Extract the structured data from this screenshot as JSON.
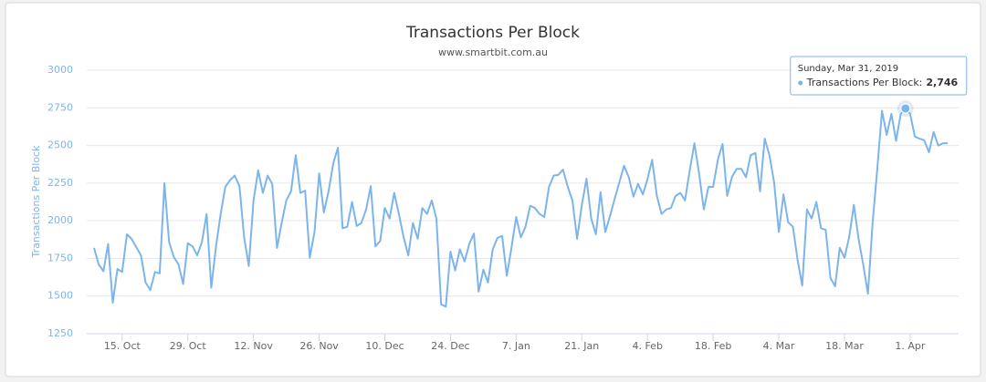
{
  "chart_data": {
    "type": "line",
    "title": "Transactions Per Block",
    "subtitle": "www.smartbit.com.au",
    "y_label": "Transactions Per Block",
    "color": "#7cb5ec",
    "grid": true,
    "ylim": [
      1250,
      3000
    ],
    "yticks": [
      1250,
      1500,
      1750,
      2000,
      2250,
      2500,
      2750,
      3000
    ],
    "categories": [
      null,
      null,
      null,
      null,
      null,
      null,
      "15. Oct",
      null,
      null,
      null,
      null,
      null,
      null,
      null,
      null,
      null,
      null,
      null,
      null,
      null,
      "29. Oct",
      null,
      null,
      null,
      null,
      null,
      null,
      null,
      null,
      null,
      null,
      null,
      null,
      null,
      "12. Nov",
      null,
      null,
      null,
      null,
      null,
      null,
      null,
      null,
      null,
      null,
      null,
      null,
      null,
      "26. Nov",
      null,
      null,
      null,
      null,
      null,
      null,
      null,
      null,
      null,
      null,
      null,
      null,
      null,
      "10. Dec",
      null,
      null,
      null,
      null,
      null,
      null,
      null,
      null,
      null,
      null,
      null,
      null,
      null,
      "24. Dec",
      null,
      null,
      null,
      null,
      null,
      null,
      null,
      null,
      null,
      null,
      null,
      null,
      null,
      "7. Jan",
      null,
      null,
      null,
      null,
      null,
      null,
      null,
      null,
      null,
      null,
      null,
      null,
      null,
      "21. Jan",
      null,
      null,
      null,
      null,
      null,
      null,
      null,
      null,
      null,
      null,
      null,
      null,
      null,
      "4. Feb",
      null,
      null,
      null,
      null,
      null,
      null,
      null,
      null,
      null,
      null,
      null,
      null,
      null,
      "18. Feb",
      null,
      null,
      null,
      null,
      null,
      null,
      null,
      null,
      null,
      null,
      null,
      null,
      null,
      "4. Mar",
      null,
      null,
      null,
      null,
      null,
      null,
      null,
      null,
      null,
      null,
      null,
      null,
      null,
      "18. Mar",
      null,
      null,
      null,
      null,
      null,
      null,
      null,
      null,
      null,
      null,
      null,
      null,
      null,
      "1. Apr",
      null,
      null,
      null,
      null,
      null,
      null,
      null,
      null
    ],
    "values": [
      1820,
      1710,
      1665,
      1845,
      1455,
      1680,
      1660,
      1910,
      1880,
      1825,
      1770,
      1590,
      1540,
      1660,
      1650,
      2250,
      1860,
      1760,
      1710,
      1580,
      1850,
      1830,
      1770,
      1860,
      2045,
      1555,
      1830,
      2045,
      2225,
      2270,
      2300,
      2230,
      1890,
      1700,
      2135,
      2335,
      2185,
      2300,
      2245,
      1820,
      1985,
      2135,
      2195,
      2435,
      2185,
      2200,
      1755,
      1925,
      2315,
      2055,
      2195,
      2380,
      2485,
      1950,
      1960,
      2125,
      1965,
      1985,
      2075,
      2230,
      1830,
      1865,
      2085,
      2015,
      2185,
      2045,
      1890,
      1770,
      1985,
      1880,
      2085,
      2045,
      2135,
      2015,
      1445,
      1430,
      1795,
      1670,
      1810,
      1730,
      1845,
      1915,
      1530,
      1675,
      1590,
      1810,
      1885,
      1900,
      1635,
      1820,
      2025,
      1890,
      1960,
      2100,
      2085,
      2045,
      2025,
      2225,
      2300,
      2305,
      2340,
      2225,
      2135,
      1880,
      2105,
      2280,
      2015,
      1910,
      2190,
      1925,
      2030,
      2145,
      2255,
      2365,
      2290,
      2160,
      2245,
      2175,
      2275,
      2405,
      2165,
      2045,
      2075,
      2085,
      2165,
      2185,
      2135,
      2330,
      2515,
      2315,
      2075,
      2225,
      2225,
      2405,
      2510,
      2165,
      2290,
      2345,
      2345,
      2290,
      2435,
      2450,
      2195,
      2545,
      2435,
      2255,
      1925,
      2175,
      1990,
      1960,
      1740,
      1570,
      2075,
      2015,
      2125,
      1950,
      1940,
      1620,
      1565,
      1820,
      1755,
      1890,
      2105,
      1880,
      1710,
      1515,
      1985,
      2345,
      2730,
      2570,
      2710,
      2530,
      2710,
      2746,
      2710,
      2560,
      2545,
      2535,
      2455,
      2590,
      2500,
      2515,
      2515
    ],
    "value_labels": [
      null,
      null,
      null,
      null,
      null,
      null,
      null,
      null,
      null,
      null,
      null,
      null,
      null,
      null,
      null,
      null,
      null,
      null,
      null,
      null,
      null,
      null,
      null,
      null,
      null,
      null,
      null,
      null,
      null,
      null,
      null,
      null,
      null,
      null,
      null,
      null,
      null,
      null,
      null,
      null,
      null,
      null,
      null,
      null,
      null,
      null,
      null,
      null,
      null,
      null,
      null,
      null,
      null,
      null,
      null,
      null,
      null,
      null,
      null,
      null,
      null,
      null,
      null,
      null,
      null,
      null,
      null,
      null,
      null,
      null,
      null,
      null,
      null,
      null,
      null,
      null,
      null,
      null,
      null,
      null,
      null,
      null,
      null,
      null,
      null,
      null,
      null,
      null,
      null,
      null,
      null,
      null,
      null,
      null,
      null,
      null,
      null,
      null,
      null,
      null,
      null,
      null,
      null,
      null,
      null,
      null,
      null,
      null,
      null,
      null,
      null,
      null,
      null,
      null,
      null,
      null,
      null,
      null,
      null,
      null,
      null,
      null,
      null,
      null,
      null,
      null,
      null,
      null,
      null,
      null,
      null,
      null,
      null,
      null,
      null,
      null,
      null,
      null,
      null,
      null,
      null,
      null,
      null,
      null,
      null,
      null,
      null,
      null,
      null,
      null,
      null,
      null,
      null,
      null,
      null,
      null,
      null,
      null,
      null,
      null,
      null,
      null,
      null,
      null,
      null,
      null,
      null,
      null,
      null,
      null,
      null,
      null,
      null,
      "2,746",
      null,
      null,
      null,
      null,
      null,
      null,
      null,
      null,
      null
    ],
    "tooltip": {
      "header": "Sunday, Mar 31, 2019",
      "label": "Transactions Per Block:"
    }
  }
}
